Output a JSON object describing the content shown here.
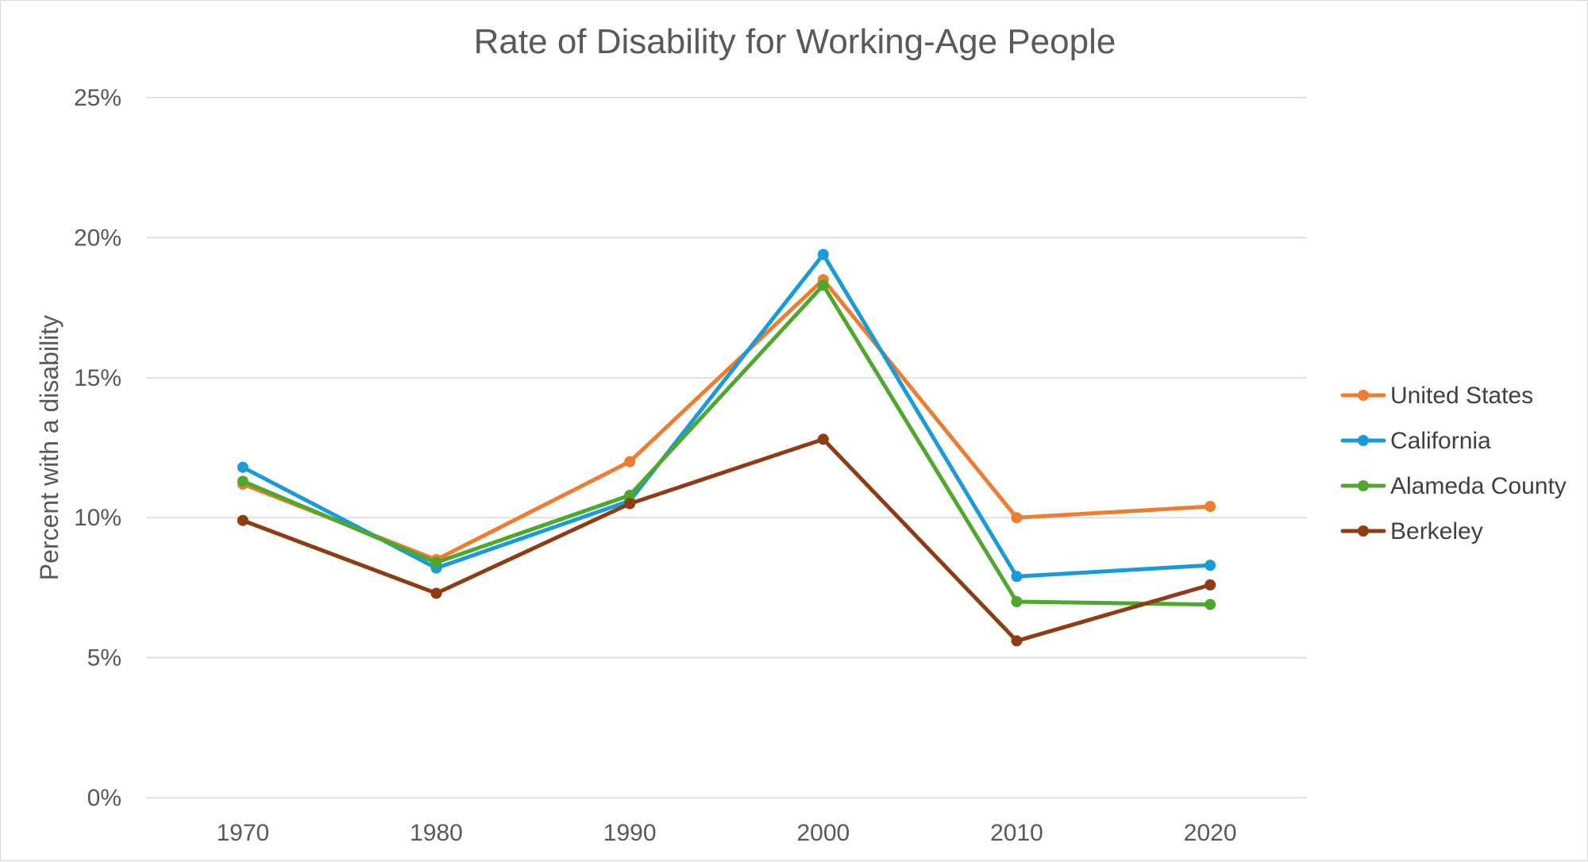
{
  "chart_data": {
    "type": "line",
    "title": "Rate of Disability for Working-Age People",
    "xlabel": "",
    "ylabel": "Percent with a disability",
    "categories": [
      "1970",
      "1980",
      "1990",
      "2000",
      "2010",
      "2020"
    ],
    "y_ticks": [
      "0%",
      "5%",
      "10%",
      "15%",
      "20%",
      "25%"
    ],
    "ylim": [
      0,
      25
    ],
    "grid": true,
    "legend_position": "right",
    "series": [
      {
        "name": "United States",
        "color": "#ED7D31",
        "values": [
          11.2,
          8.5,
          12.0,
          18.5,
          10.0,
          10.4
        ]
      },
      {
        "name": "California",
        "color": "#1A9BD7",
        "values": [
          11.8,
          8.2,
          10.6,
          19.4,
          7.9,
          8.3
        ]
      },
      {
        "name": "Alameda County",
        "color": "#4EA72E",
        "values": [
          11.3,
          8.4,
          10.8,
          18.3,
          7.0,
          6.9
        ]
      },
      {
        "name": "Berkeley",
        "color": "#8E3D12",
        "values": [
          9.9,
          7.3,
          10.5,
          12.8,
          5.6,
          7.6
        ]
      }
    ]
  }
}
